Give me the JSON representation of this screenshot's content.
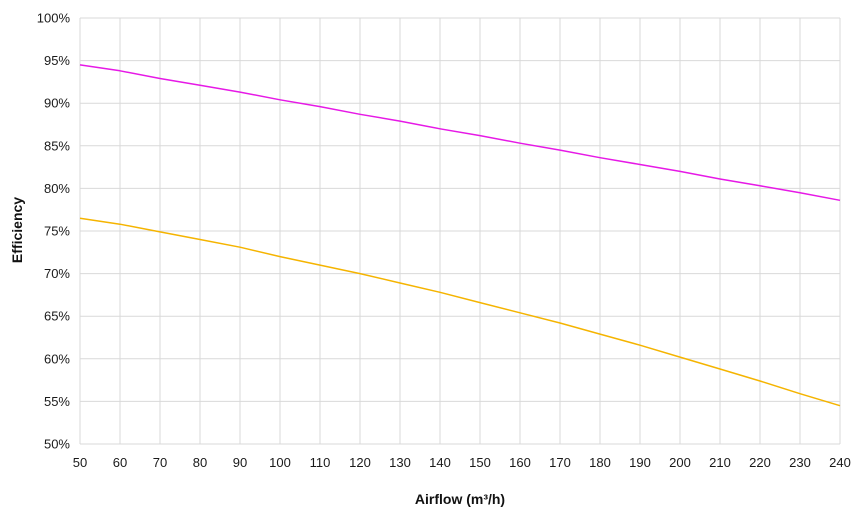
{
  "chart_data": {
    "type": "line",
    "title": "",
    "xlabel": "Airflow (m³/h)",
    "ylabel": "Efficiency",
    "xlim": [
      50,
      240
    ],
    "ylim": [
      50,
      100
    ],
    "x_ticks": [
      50,
      60,
      70,
      80,
      90,
      100,
      110,
      120,
      130,
      140,
      150,
      160,
      170,
      180,
      190,
      200,
      210,
      220,
      230,
      240
    ],
    "x_tick_labels": [
      "50",
      "60",
      "70",
      "80",
      "90",
      "100",
      "110",
      "120",
      "130",
      "140",
      "150",
      "160",
      "170",
      "180",
      "190",
      "200",
      "210",
      "220",
      "230",
      "240"
    ],
    "y_ticks": [
      50,
      55,
      60,
      65,
      70,
      75,
      80,
      85,
      90,
      95,
      100
    ],
    "y_tick_labels": [
      "50%",
      "55%",
      "60%",
      "65%",
      "70%",
      "75%",
      "80%",
      "85%",
      "90%",
      "95%",
      "100%"
    ],
    "grid": true,
    "legend": "none",
    "series": [
      {
        "color": "#e619e6",
        "x": [
          50,
          60,
          70,
          80,
          90,
          100,
          110,
          120,
          130,
          140,
          150,
          160,
          170,
          180,
          190,
          200,
          210,
          220,
          230,
          240
        ],
        "values": [
          94.5,
          93.8,
          92.9,
          92.1,
          91.3,
          90.4,
          89.6,
          88.7,
          87.9,
          87.0,
          86.2,
          85.3,
          84.5,
          83.6,
          82.8,
          82.0,
          81.1,
          80.3,
          79.5,
          78.6
        ]
      },
      {
        "color": "#f5b400",
        "x": [
          50,
          60,
          70,
          80,
          90,
          100,
          110,
          120,
          130,
          140,
          150,
          160,
          170,
          180,
          190,
          200,
          210,
          220,
          230,
          240
        ],
        "values": [
          76.5,
          75.8,
          74.9,
          74.0,
          73.1,
          72.0,
          71.0,
          70.0,
          68.9,
          67.8,
          66.6,
          65.4,
          64.2,
          62.9,
          61.6,
          60.2,
          58.8,
          57.4,
          55.9,
          54.5
        ]
      }
    ]
  }
}
